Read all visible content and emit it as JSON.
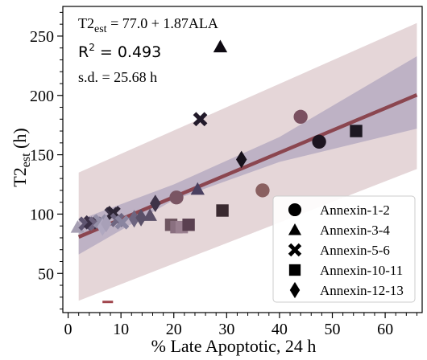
{
  "chart_data": {
    "type": "scatter",
    "xlabel": "% Late Apoptotic, 24 h",
    "ylabel_main": "T2",
    "ylabel_sub": "est",
    "ylabel_unit": " (h)",
    "xlim": [
      -1,
      67
    ],
    "ylim": [
      17,
      275
    ],
    "x_ticks": [
      "0",
      "10",
      "20",
      "30",
      "40",
      "50",
      "60"
    ],
    "x_tick_values": [
      0,
      10,
      20,
      30,
      40,
      50,
      60
    ],
    "y_ticks": [
      "50",
      "100",
      "150",
      "200",
      "250"
    ],
    "y_tick_values": [
      50,
      100,
      150,
      200,
      250
    ],
    "annotation": {
      "eq_main": "T2",
      "eq_sub": "est",
      "eq_rest": " = 77.0 + 1.87ALA",
      "r2_main": "R",
      "r2_sup": "2",
      "r2_rest": " = 0.493",
      "sd": "s.d. = 25.68 h"
    },
    "fit": {
      "intercept": 77.0,
      "slope": 1.87,
      "x_range": [
        2,
        66
      ],
      "color": "#8b4650"
    },
    "band_outer": {
      "x": [
        2,
        66
      ],
      "lower": [
        27,
        138
      ],
      "upper": [
        135,
        261
      ],
      "color": "#e5d6d8"
    },
    "band_inner": {
      "x": [
        2,
        20,
        40,
        66
      ],
      "lower": [
        66,
        112,
        144,
        172
      ],
      "upper": [
        95,
        125,
        165,
        233
      ],
      "color": "#b9aec3"
    },
    "short_segment": {
      "x": [
        6.5,
        8.5
      ],
      "y": 26,
      "color": "#a0454c"
    },
    "legend": {
      "position": "bottom-right"
    },
    "series": [
      {
        "name": "Annexin-1-2",
        "marker": "circle",
        "points": [
          [
            20.5,
            114,
            "#7a5563"
          ],
          [
            36.8,
            120,
            "#8a6060"
          ],
          [
            44,
            182,
            "#7a5060"
          ],
          [
            47.5,
            161,
            "#1d1520"
          ]
        ]
      },
      {
        "name": "Annexin-3-4",
        "marker": "triangle",
        "points": [
          [
            1.8,
            89,
            "#a69fb3"
          ],
          [
            15.5,
            99,
            "#5b5068"
          ],
          [
            24.5,
            121,
            "#4a4060"
          ],
          [
            28.8,
            241,
            "#0e0a12"
          ]
        ]
      },
      {
        "name": "Annexin-5-6",
        "marker": "x",
        "points": [
          [
            3.3,
            92,
            "#5f5570"
          ],
          [
            4.3,
            93,
            "#3a2f45"
          ],
          [
            5.2,
            92,
            "#706580"
          ],
          [
            6.1,
            94,
            "#9590a8"
          ],
          [
            8.2,
            100,
            "#3c3448"
          ],
          [
            8.6,
            101,
            "#2d2535"
          ],
          [
            9.3,
            95,
            "#6e6580"
          ],
          [
            10.2,
            93,
            "#8a85a0"
          ],
          [
            25,
            180,
            "#221a2a"
          ]
        ]
      },
      {
        "name": "Annexin-10-11",
        "marker": "square",
        "points": [
          [
            19.5,
            91,
            "#6e5560"
          ],
          [
            20.5,
            89,
            "#8a7080"
          ],
          [
            21.5,
            89,
            "#9a8090"
          ],
          [
            22.8,
            91,
            "#5a4050"
          ],
          [
            29.2,
            103,
            "#3a2a30"
          ],
          [
            54.5,
            170,
            "#1d1822"
          ]
        ]
      },
      {
        "name": "Annexin-12-13",
        "marker": "diamond",
        "points": [
          [
            6.5,
            89,
            "#b0a8c0"
          ],
          [
            7.2,
            92,
            "#a8a0b8"
          ],
          [
            12.5,
            96,
            "#6e6580"
          ],
          [
            13.8,
            97,
            "#5a5068"
          ],
          [
            16.5,
            109,
            "#3d3348"
          ],
          [
            32.8,
            146,
            "#18121c"
          ]
        ]
      }
    ]
  }
}
